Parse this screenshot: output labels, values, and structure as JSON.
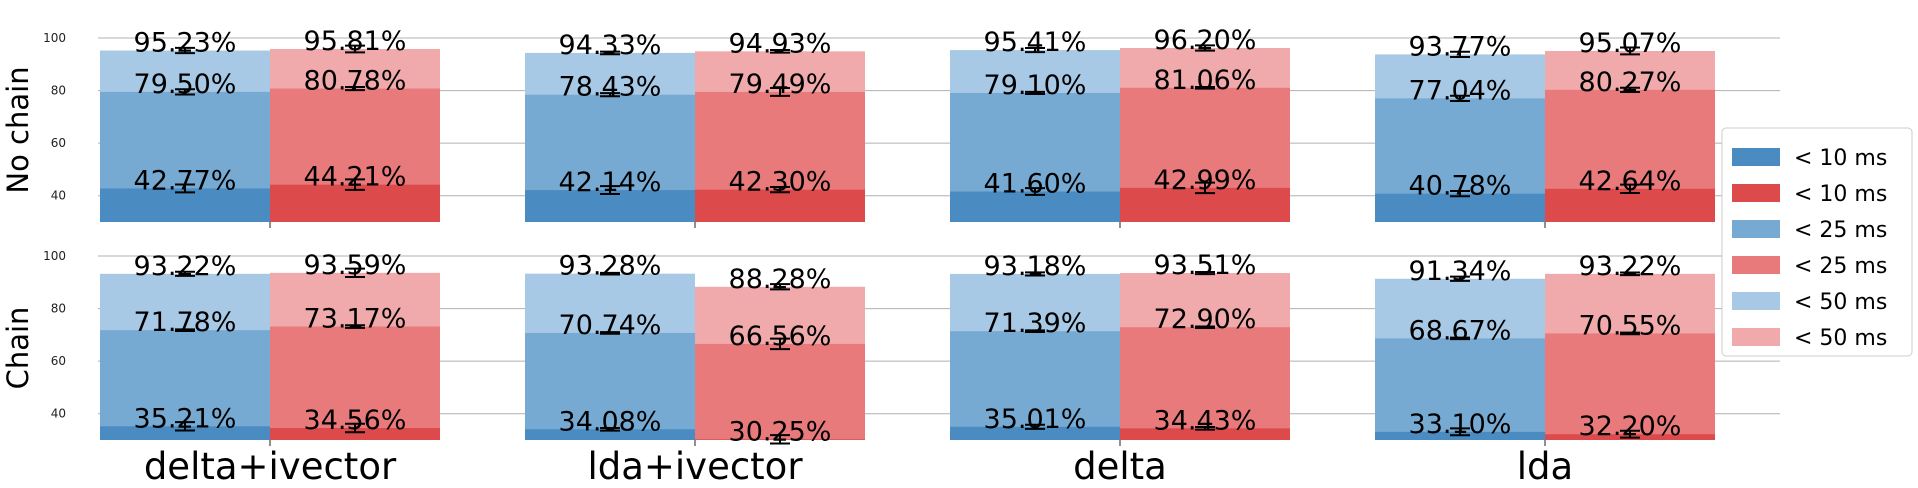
{
  "chart_data": {
    "type": "bar",
    "stacked": "overlaid",
    "grid": "horizontal",
    "legend_position": "right",
    "ylim": [
      30,
      100
    ],
    "yticks": [
      40,
      60,
      80,
      100
    ],
    "categories": [
      "delta+ivector",
      "lda+ivector",
      "delta",
      "lda"
    ],
    "colors": {
      "blue": [
        "#4a8cc2",
        "#76aad3",
        "#a8c9e5"
      ],
      "red": [
        "#dd4a4c",
        "#e87a7c",
        "#f0aaac"
      ]
    },
    "legend": [
      {
        "label": "< 10 ms",
        "color": "#4a8cc2"
      },
      {
        "label": "< 10 ms",
        "color": "#dd4a4c"
      },
      {
        "label": "< 25 ms",
        "color": "#76aad3"
      },
      {
        "label": "< 25 ms",
        "color": "#e87a7c"
      },
      {
        "label": "< 50 ms",
        "color": "#a8c9e5"
      },
      {
        "label": "< 50 ms",
        "color": "#f0aaac"
      }
    ],
    "panels": [
      {
        "ylabel": "No chain",
        "groups": [
          {
            "category": "delta+ivector",
            "blue": {
              "values": [
                42.77,
                79.5,
                95.23
              ],
              "labels": [
                "42.77%",
                "79.50%",
                "95.23%"
              ],
              "err": [
                1.5,
                1.0,
                1.0
              ]
            },
            "red": {
              "values": [
                44.21,
                80.78,
                95.81
              ],
              "labels": [
                "44.21%",
                "80.78%",
                "95.81%"
              ],
              "err": [
                2.0,
                0.6,
                1.3
              ]
            }
          },
          {
            "category": "lda+ivector",
            "blue": {
              "values": [
                42.14,
                78.43,
                94.33
              ],
              "labels": [
                "42.14%",
                "78.43%",
                "94.33%"
              ],
              "err": [
                1.5,
                0.6,
                0.5
              ]
            },
            "red": {
              "values": [
                42.3,
                79.49,
                94.93
              ],
              "labels": [
                "42.30%",
                "79.49%",
                "94.93%"
              ],
              "err": [
                1.0,
                1.5,
                0.5
              ]
            }
          },
          {
            "category": "delta",
            "blue": {
              "values": [
                41.6,
                79.1,
                95.41
              ],
              "labels": [
                "41.60%",
                "79.10%",
                "95.41%"
              ],
              "err": [
                1.3,
                0.4,
                0.8
              ]
            },
            "red": {
              "values": [
                42.99,
                81.06,
                96.2
              ],
              "labels": [
                "42.99%",
                "81.06%",
                "96.20%"
              ],
              "err": [
                2.0,
                0.3,
                1.0
              ]
            }
          },
          {
            "category": "lda",
            "blue": {
              "values": [
                40.78,
                77.04,
                93.77
              ],
              "labels": [
                "40.78%",
                "77.04%",
                "93.77%"
              ],
              "err": [
                1.0,
                1.0,
                1.0
              ]
            },
            "red": {
              "values": [
                42.64,
                80.27,
                95.07
              ],
              "labels": [
                "42.64%",
                "80.27%",
                "95.07%"
              ],
              "err": [
                1.6,
                0.8,
                1.3
              ]
            }
          }
        ]
      },
      {
        "ylabel": "Chain",
        "groups": [
          {
            "category": "delta+ivector",
            "blue": {
              "values": [
                35.21,
                71.78,
                93.22
              ],
              "labels": [
                "35.21%",
                "71.78%",
                "93.22%"
              ],
              "err": [
                1.6,
                0.3,
                0.8
              ]
            },
            "red": {
              "values": [
                34.56,
                73.17,
                93.59
              ],
              "labels": [
                "34.56%",
                "73.17%",
                "93.59%"
              ],
              "err": [
                1.6,
                0.5,
                1.6
              ]
            }
          },
          {
            "category": "lda+ivector",
            "blue": {
              "values": [
                34.08,
                70.74,
                93.28
              ],
              "labels": [
                "34.08%",
                "70.74%",
                "93.28%"
              ],
              "err": [
                0.5,
                0.3,
                0.3
              ]
            },
            "red": {
              "values": [
                30.25,
                66.56,
                88.28
              ],
              "labels": [
                "30.25%",
                "66.56%",
                "88.28%"
              ],
              "err": [
                1.6,
                2.0,
                1.0
              ]
            }
          },
          {
            "category": "delta",
            "blue": {
              "values": [
                35.01,
                71.39,
                93.18
              ],
              "labels": [
                "35.01%",
                "71.39%",
                "93.18%"
              ],
              "err": [
                0.8,
                0.3,
                0.6
              ]
            },
            "red": {
              "values": [
                34.43,
                72.9,
                93.51
              ],
              "labels": [
                "34.43%",
                "72.90%",
                "93.51%"
              ],
              "err": [
                0.5,
                0.3,
                0.4
              ]
            }
          },
          {
            "category": "lda",
            "blue": {
              "values": [
                33.1,
                68.67,
                91.34
              ],
              "labels": [
                "33.10%",
                "68.67%",
                "91.34%"
              ],
              "err": [
                1.3,
                0.3,
                0.8
              ]
            },
            "red": {
              "values": [
                32.2,
                70.55,
                93.22
              ],
              "labels": [
                "32.20%",
                "70.55%",
                "93.22%"
              ],
              "err": [
                1.3,
                0.3,
                0.5
              ]
            }
          }
        ]
      }
    ]
  }
}
